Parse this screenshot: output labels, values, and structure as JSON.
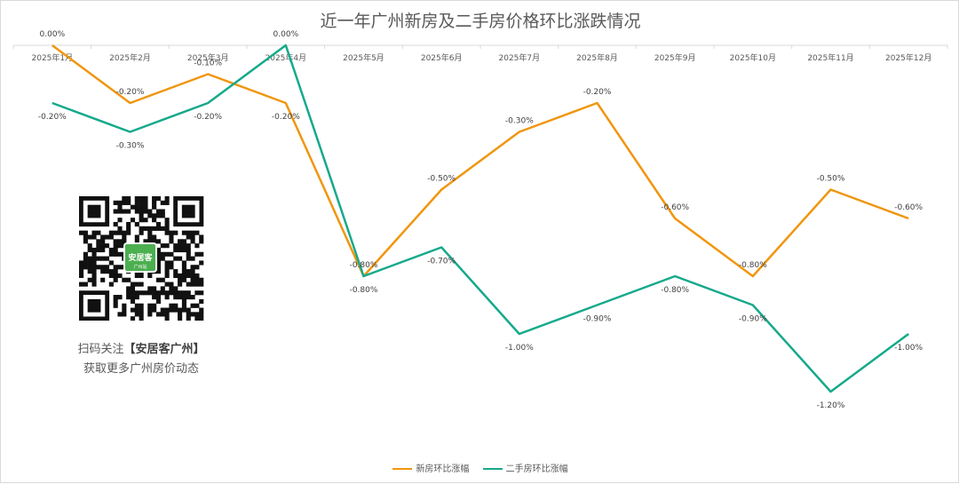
{
  "chart_data": {
    "type": "line",
    "title": "近一年广州新房及二手房价格环比涨跌情况",
    "categories": [
      "2025年1月",
      "2025年2月",
      "2025年3月",
      "2025年4月",
      "2025年5月",
      "2025年6月",
      "2025年7月",
      "2025年8月",
      "2025年9月",
      "2025年10月",
      "2025年11月",
      "2025年12月"
    ],
    "ylim": [
      -1.2,
      0.0
    ],
    "grid": false,
    "legend": "bottom",
    "series": [
      {
        "name": "新房环比涨幅",
        "color": "#f0960f",
        "values": [
          0.0,
          -0.2,
          -0.1,
          -0.2,
          -0.8,
          -0.5,
          -0.3,
          -0.2,
          -0.6,
          -0.8,
          -0.5,
          -0.6
        ],
        "labels": [
          "0.00%",
          "-0.20%",
          "-0.10%",
          "-0.20%",
          "-0.80%",
          "-0.50%",
          "-0.30%",
          "-0.20%",
          "-0.60%",
          "-0.80%",
          "-0.50%",
          "-0.60%"
        ]
      },
      {
        "name": "二手房环比涨幅",
        "color": "#16a98b",
        "values": [
          -0.2,
          -0.3,
          -0.2,
          0.0,
          -0.8,
          -0.7,
          -1.0,
          -0.9,
          -0.8,
          -0.9,
          -1.2,
          -1.0
        ],
        "labels": [
          "-0.20%",
          "-0.30%",
          "-0.20%",
          "0.00%",
          "-0.80%",
          "-0.70%",
          "-1.00%",
          "-0.90%",
          "-0.80%",
          "-0.90%",
          "-1.20%",
          "-1.00%"
        ]
      }
    ]
  },
  "promo": {
    "logo_text": "安居客",
    "logo_sub": "广州站",
    "line1_prefix": "扫码关注",
    "line1_brand": "【安居客广州】",
    "line2": "获取更多广州房价动态"
  }
}
